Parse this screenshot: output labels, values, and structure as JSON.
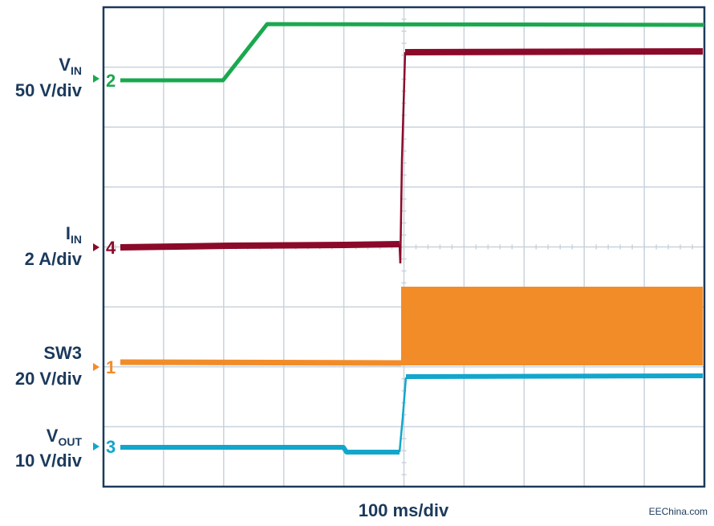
{
  "channels": [
    {
      "name": "V",
      "sub": "IN",
      "scale": "50 V/div",
      "number": "2",
      "color": "#1aa84f"
    },
    {
      "name": "I",
      "sub": "IN",
      "scale": "2 A/div",
      "number": "4",
      "color": "#8b0a2a"
    },
    {
      "name": "SW3",
      "scale": "20 V/div",
      "number": "1",
      "color": "#f28c28"
    },
    {
      "name": "V",
      "sub": "OUT",
      "scale": "10 V/div",
      "number": "3",
      "color": "#12a6cc"
    }
  ],
  "timebase": "100 ms/div",
  "watermark": "EEChina.com"
}
